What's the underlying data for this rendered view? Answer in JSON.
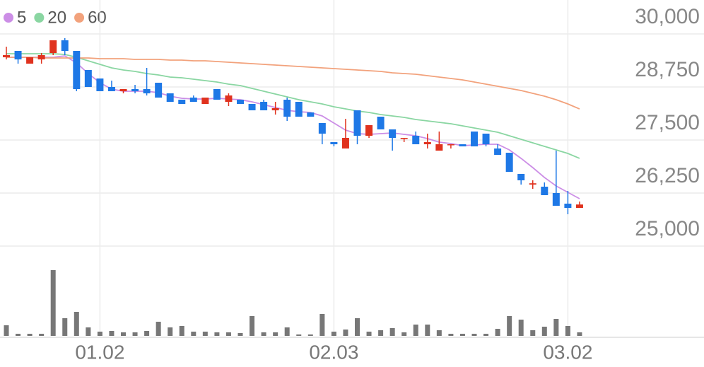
{
  "chart_data": {
    "type": "candlestick",
    "categories": [
      null,
      null,
      null,
      null,
      null,
      null,
      null,
      null,
      "01.02",
      null,
      null,
      null,
      null,
      null,
      null,
      null,
      null,
      null,
      null,
      null,
      null,
      null,
      null,
      null,
      null,
      null,
      null,
      null,
      "02.03",
      null,
      null,
      null,
      null,
      null,
      null,
      null,
      null,
      null,
      null,
      null,
      null,
      null,
      null,
      null,
      null,
      null,
      null,
      null,
      "03.02",
      null
    ],
    "open": [
      29450,
      29600,
      29300,
      29400,
      29550,
      29850,
      29600,
      29150,
      28950,
      28750,
      28650,
      28700,
      28700,
      28850,
      28600,
      28450,
      28500,
      28350,
      28700,
      28400,
      28450,
      28350,
      28400,
      28200,
      28450,
      28400,
      28150,
      27900,
      27450,
      27300,
      28200,
      27600,
      28050,
      27750,
      27530,
      27600,
      27400,
      27250,
      27380,
      27400,
      27700,
      27650,
      27300,
      27200,
      26700,
      26450,
      26400,
      26250,
      26000,
      25900
    ],
    "high": [
      29700,
      29600,
      29450,
      29550,
      29850,
      29900,
      29600,
      29150,
      28950,
      28900,
      28700,
      28800,
      29200,
      28850,
      28600,
      28450,
      28550,
      28500,
      28700,
      28600,
      28450,
      28350,
      28450,
      28400,
      28500,
      28400,
      28150,
      27900,
      27450,
      28000,
      28200,
      27850,
      28050,
      27750,
      27550,
      27700,
      27650,
      27700,
      27400,
      27400,
      27700,
      27650,
      27400,
      27200,
      26700,
      26550,
      26500,
      27250,
      26300,
      26050
    ],
    "low": [
      29400,
      29300,
      29300,
      29300,
      29500,
      29500,
      28650,
      28750,
      28650,
      28650,
      28600,
      28600,
      28550,
      28500,
      28400,
      28350,
      28400,
      28350,
      28450,
      28300,
      28350,
      28200,
      28200,
      28100,
      27950,
      28050,
      28050,
      27400,
      27350,
      27300,
      27400,
      27550,
      27750,
      27250,
      27450,
      27400,
      27300,
      27250,
      27300,
      27350,
      27350,
      27350,
      27150,
      26750,
      26450,
      26350,
      26200,
      25950,
      25750,
      25900
    ],
    "close": [
      29500,
      29400,
      29450,
      29500,
      29850,
      29600,
      28700,
      28750,
      28650,
      28650,
      28700,
      28650,
      28600,
      28500,
      28400,
      28350,
      28400,
      28500,
      28450,
      28550,
      28350,
      28200,
      28200,
      28250,
      28050,
      28050,
      28050,
      27650,
      27400,
      27550,
      27600,
      27850,
      27750,
      27550,
      27550,
      27400,
      27450,
      27400,
      27400,
      27350,
      27350,
      27400,
      27150,
      26750,
      26550,
      26480,
      26200,
      25950,
      25900,
      25980
    ],
    "up_color": "#e0321e",
    "down_color": "#1e78e6",
    "ylim": [
      25000,
      30000
    ],
    "yticks": [
      {
        "value": 25000,
        "label": "25,000"
      },
      {
        "value": 26250,
        "label": "26,250"
      },
      {
        "value": 27500,
        "label": "27,500"
      },
      {
        "value": 28750,
        "label": "28,750"
      },
      {
        "value": 30000,
        "label": "30,000"
      }
    ],
    "grid": true,
    "series": [
      {
        "name": "5",
        "color": "#cc8ee6",
        "values": [
          29450,
          29450,
          29450,
          29450,
          29450,
          29483,
          29317,
          29067,
          28850,
          28700,
          28650,
          28650,
          28650,
          28617,
          28533,
          28483,
          28467,
          28467,
          28483,
          28467,
          28450,
          28400,
          28333,
          28267,
          28200,
          28167,
          28150,
          28067,
          27900,
          27733,
          27650,
          27633,
          27650,
          27667,
          27633,
          27600,
          27533,
          27450,
          27417,
          27367,
          27383,
          27400,
          27400,
          27267,
          27067,
          26850,
          26617,
          26417,
          26267,
          26117
        ]
      },
      {
        "name": "20",
        "color": "#8ad6a2",
        "values": [
          29533,
          29533,
          29533,
          29533,
          29533,
          29517,
          29450,
          29367,
          29283,
          29200,
          29150,
          29117,
          29067,
          29033,
          28983,
          28967,
          28933,
          28900,
          28867,
          28817,
          28783,
          28717,
          28650,
          28583,
          28517,
          28450,
          28400,
          28350,
          28283,
          28233,
          28183,
          28150,
          28100,
          28067,
          28033,
          27983,
          27950,
          27917,
          27883,
          27833,
          27783,
          27733,
          27683,
          27600,
          27517,
          27433,
          27350,
          27267,
          27183,
          27067
        ]
      },
      {
        "name": "60",
        "color": "#f2a27c",
        "values": [
          29450,
          29450,
          29450,
          29433,
          29433,
          29433,
          29433,
          29433,
          29417,
          29417,
          29417,
          29400,
          29400,
          29400,
          29383,
          29383,
          29367,
          29367,
          29350,
          29333,
          29317,
          29300,
          29283,
          29267,
          29250,
          29233,
          29217,
          29200,
          29183,
          29167,
          29150,
          29133,
          29117,
          29083,
          29067,
          29050,
          29017,
          28983,
          28950,
          28917,
          28867,
          28817,
          28767,
          28717,
          28667,
          28600,
          28533,
          28450,
          28350,
          28233
        ]
      }
    ],
    "volume": {
      "color": "#777777",
      "ylim": [
        0,
        100
      ],
      "values": [
        15,
        3,
        3,
        3,
        93,
        25,
        34,
        12,
        6,
        7,
        5,
        5,
        7,
        20,
        12,
        14,
        6,
        6,
        5,
        5,
        4,
        28,
        5,
        5,
        12,
        2,
        2,
        31,
        6,
        9,
        25,
        6,
        8,
        11,
        5,
        16,
        16,
        8,
        3,
        3,
        3,
        3,
        10,
        28,
        23,
        8,
        13,
        24,
        14,
        5
      ]
    }
  }
}
